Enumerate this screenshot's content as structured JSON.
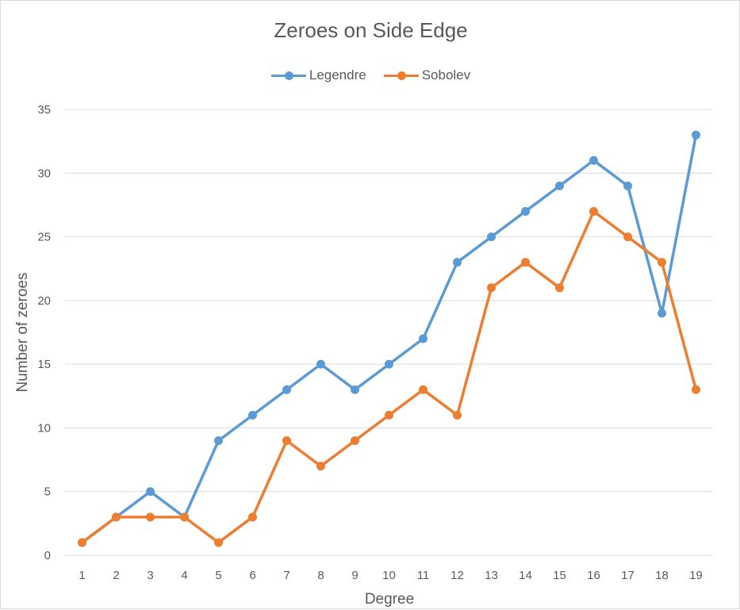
{
  "chart_data": {
    "type": "line",
    "title": "Zeroes on Side Edge",
    "xlabel": "Degree",
    "ylabel": "Number of zeroes",
    "categories": [
      "1",
      "2",
      "3",
      "4",
      "5",
      "6",
      "7",
      "8",
      "9",
      "10",
      "11",
      "12",
      "13",
      "14",
      "15",
      "16",
      "17",
      "18",
      "19"
    ],
    "ylim": [
      0,
      35
    ],
    "yticks": [
      "0",
      "5",
      "10",
      "15",
      "20",
      "25",
      "30",
      "35"
    ],
    "grid": true,
    "legend_position": "top",
    "series": [
      {
        "name": "Legendre",
        "color": "#5b9bd5",
        "values": [
          1,
          3,
          5,
          3,
          9,
          11,
          13,
          15,
          13,
          15,
          17,
          23,
          25,
          27,
          29,
          31,
          29,
          19,
          33
        ]
      },
      {
        "name": "Sobolev",
        "color": "#ed7d31",
        "values": [
          1,
          3,
          3,
          3,
          1,
          3,
          9,
          7,
          9,
          11,
          13,
          11,
          21,
          23,
          21,
          27,
          25,
          23,
          13
        ]
      }
    ]
  }
}
